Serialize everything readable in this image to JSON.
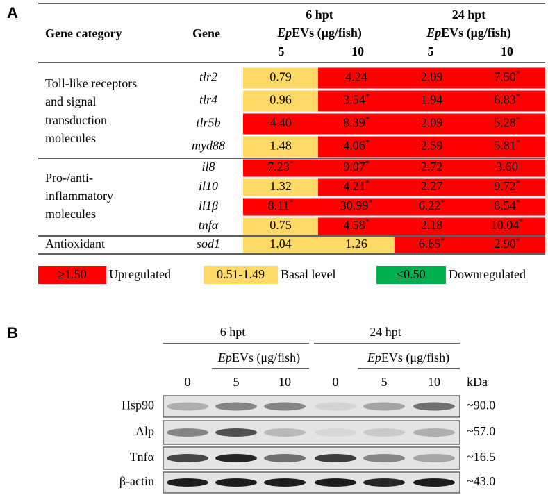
{
  "panel_a": {
    "label": "A",
    "headers": {
      "category": "Gene category",
      "gene": "Gene",
      "groups": [
        {
          "time": "6 hpt",
          "prefix": "Ep",
          "suffix": "EVs (μg/fish)",
          "doses": [
            "5",
            "10"
          ]
        },
        {
          "time": "24 hpt",
          "prefix": "Ep",
          "suffix": "EVs (μg/fish)",
          "doses": [
            "5",
            "10"
          ]
        }
      ]
    },
    "groups": [
      {
        "lines": [
          "Toll-like receptors",
          "and signal",
          "transduction",
          "molecules"
        ],
        "rows": [
          {
            "gene": "tlr2",
            "cells": [
              {
                "text": "0.79",
                "color": "#ffd966"
              },
              {
                "text": "4.24",
                "color": "#ff0000"
              },
              {
                "text": "2.09",
                "color": "#ff0000"
              },
              {
                "text": "7.50",
                "star": "*",
                "color": "#ff0000"
              }
            ]
          },
          {
            "gene": "tlr4",
            "cells": [
              {
                "text": "0.96",
                "color": "#ffd966"
              },
              {
                "text": "3.54",
                "star": "*",
                "color": "#ff0000"
              },
              {
                "text": "1.94",
                "color": "#ff0000"
              },
              {
                "text": "6.83",
                "star": "*",
                "color": "#ff0000"
              }
            ]
          },
          {
            "gene": "tlr5b",
            "cells": [
              {
                "text": "4.40",
                "color": "#ff0000"
              },
              {
                "text": "8.39",
                "star": "*",
                "color": "#ff0000"
              },
              {
                "text": "2.09",
                "color": "#ff0000"
              },
              {
                "text": "5.28",
                "star": "*",
                "color": "#ff0000"
              }
            ]
          },
          {
            "gene": "myd88",
            "cells": [
              {
                "text": "1.48",
                "color": "#ffd966"
              },
              {
                "text": "4.06",
                "star": "*",
                "color": "#ff0000"
              },
              {
                "text": "2.59",
                "color": "#ff0000"
              },
              {
                "text": "5.81",
                "star": "*",
                "color": "#ff0000"
              }
            ]
          }
        ]
      },
      {
        "lines": [
          "Pro-/anti-",
          "inflammatory",
          "molecules"
        ],
        "rows": [
          {
            "gene": "il8",
            "cells": [
              {
                "text": "7.23",
                "star": "*",
                "color": "#ff0000"
              },
              {
                "text": "9.07",
                "star": "*",
                "color": "#ff0000"
              },
              {
                "text": "2.72",
                "color": "#ff0000"
              },
              {
                "text": "3.60",
                "color": "#ff0000"
              }
            ]
          },
          {
            "gene": "il10",
            "cells": [
              {
                "text": "1.32",
                "color": "#ffd966"
              },
              {
                "text": "4.21",
                "star": "*",
                "color": "#ff0000"
              },
              {
                "text": "2.27",
                "color": "#ff0000"
              },
              {
                "text": "9.72",
                "star": "*",
                "color": "#ff0000"
              }
            ]
          },
          {
            "gene": "il1β",
            "cells": [
              {
                "text": "8.11",
                "star": "*",
                "color": "#ff0000"
              },
              {
                "text": "30.99",
                "star": "*",
                "color": "#ff0000"
              },
              {
                "text": "6.22",
                "star": "*",
                "color": "#ff0000"
              },
              {
                "text": "8.54",
                "star": "*",
                "color": "#ff0000"
              }
            ]
          },
          {
            "gene": "tnfα",
            "cells": [
              {
                "text": "0.75",
                "color": "#ffd966"
              },
              {
                "text": "4.58",
                "star": "*",
                "color": "#ff0000"
              },
              {
                "text": "2.18",
                "color": "#ff0000"
              },
              {
                "text": "10.04",
                "star": "*",
                "color": "#ff0000"
              }
            ]
          }
        ]
      },
      {
        "lines": [
          "Antioxidant"
        ],
        "rows": [
          {
            "gene": "sod1",
            "cells": [
              {
                "text": "1.04",
                "color": "#ffd966"
              },
              {
                "text": "1.26",
                "color": "#ffd966"
              },
              {
                "text": "6.65",
                "star": "*",
                "color": "#ff0000"
              },
              {
                "text": "2.90",
                "star": "*",
                "color": "#ff0000"
              }
            ]
          }
        ]
      }
    ],
    "legend": [
      {
        "range": "≥1.50",
        "label": "Upregulated",
        "color": "#ff0000"
      },
      {
        "range": "0.51-1.49",
        "label": "Basal level",
        "color": "#ffd966"
      },
      {
        "range": "≤0.50",
        "label": "Downregulated",
        "color": "#00b050"
      }
    ]
  },
  "panel_b": {
    "label": "B",
    "groups": [
      {
        "time": "6 hpt",
        "prefix": "Ep",
        "suffix": "EVs (μg/fish)",
        "lanes": [
          "0",
          "5",
          "10"
        ]
      },
      {
        "time": "24 hpt",
        "prefix": "Ep",
        "suffix": "EVs (μg/fish)",
        "lanes": [
          "0",
          "5",
          "10"
        ]
      }
    ],
    "unit": "kDa",
    "rows": [
      {
        "protein": "Hsp90",
        "size": "~90.0"
      },
      {
        "protein": "Alp",
        "size": "~57.0"
      },
      {
        "protein": "Tnfα",
        "size": "~16.5"
      },
      {
        "protein": "β-actin",
        "size": "~43.0"
      }
    ]
  }
}
